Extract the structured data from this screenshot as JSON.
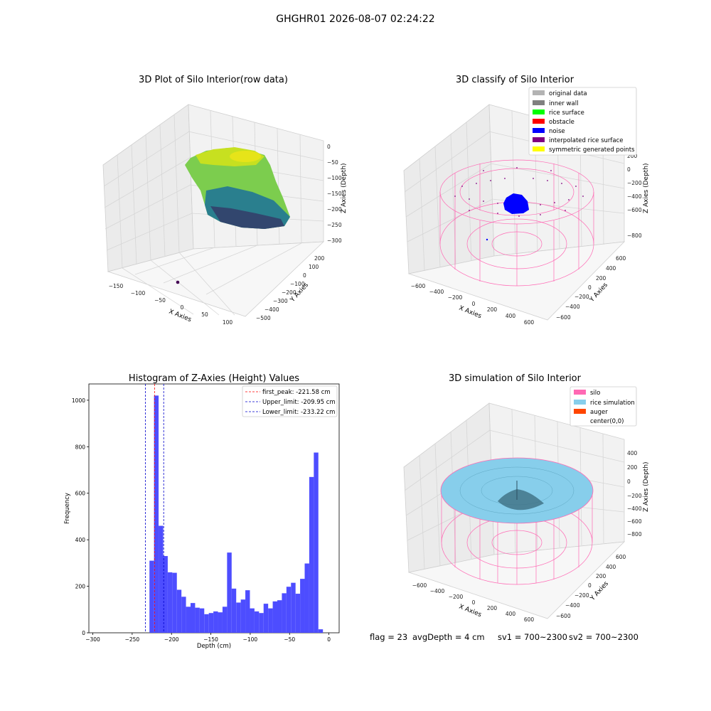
{
  "page_title": "GHGHR01 2026-08-07 02:24:22",
  "colors": {
    "original_data": "#b3b3b3",
    "inner_wall": "#808080",
    "rice_surface": "#00ff00",
    "obstacle": "#ff0000",
    "noise": "#0000ff",
    "interpolated_rice_surface": "#800080",
    "symmetric_generated_points": "#ffff00",
    "silo": "#ff69b4",
    "rice_simulation": "#87ceeb",
    "auger": "#ff4500",
    "hist_bar": "#4d4dff",
    "first_peak": "#ff0000",
    "limit": "#0000cc"
  },
  "panel1": {
    "title": "3D Plot of Silo Interior(row data)",
    "xlabel": "X Axies",
    "ylabel": "Y Axies",
    "zlabel": "Z Axies (Depth)",
    "xticks": [
      "−150",
      "−100",
      "−50",
      "0",
      "50",
      "100"
    ],
    "yticks": [
      "200",
      "100",
      "0",
      "−100",
      "−200",
      "−300",
      "−400",
      "−500"
    ],
    "zticks": [
      "0",
      "−50",
      "−100",
      "−150",
      "−200",
      "−250",
      "−300"
    ]
  },
  "panel2": {
    "title": "3D classify of Silo Interior",
    "xlabel": "X Axies",
    "ylabel": "Y Axies",
    "zlabel": "Z Axies (Depth)",
    "xticks": [
      "−600",
      "−400",
      "−200",
      "0",
      "200",
      "400",
      "600"
    ],
    "yticks": [
      "600",
      "400",
      "200",
      "0",
      "−200",
      "−400",
      "−600"
    ],
    "zticks": [
      "200",
      "0",
      "−200",
      "−400",
      "−600",
      "−800"
    ],
    "legend": [
      "original data",
      "inner wall",
      "rice surface",
      "obstacle",
      "noise",
      "interpolated rice surface",
      "symmetric generated points"
    ]
  },
  "panel4": {
    "title": "3D simulation of Silo Interior",
    "xlabel": "X Axies",
    "ylabel": "Y Axies",
    "zlabel": "Z Axies (Depth)",
    "xticks": [
      "−600",
      "−400",
      "−200",
      "0",
      "200",
      "400",
      "600"
    ],
    "yticks": [
      "600",
      "400",
      "200",
      "0",
      "−200",
      "−400",
      "−600"
    ],
    "zticks": [
      "400",
      "200",
      "0",
      "−200",
      "−400",
      "−600",
      "−800"
    ],
    "legend": [
      "silo",
      "rice simulation",
      "auger",
      "center(0,0)"
    ]
  },
  "status": {
    "flag": "flag = 23",
    "avg_depth": "avgDepth = 4 cm",
    "sv1": "sv1 = 700~2300",
    "sv2": "sv2 = 700~2300"
  },
  "chart_data": {
    "type": "bar",
    "title": "Histogram of Z-Axies (Height) Values",
    "xlabel": "Depth (cm)",
    "ylabel": "Frequency",
    "xlim": [
      -305,
      13
    ],
    "ylim": [
      0,
      1070
    ],
    "xticks": [
      -300,
      -250,
      -200,
      -150,
      -100,
      -50,
      0
    ],
    "yticks": [
      0,
      200,
      400,
      600,
      800,
      1000
    ],
    "bin_width": 5.8,
    "bin_starts": [
      -228,
      -222.2,
      -216.4,
      -210.6,
      -204.8,
      -199,
      -193.2,
      -187.4,
      -181.6,
      -175.8,
      -170,
      -164.2,
      -158.4,
      -152.6,
      -146.8,
      -141,
      -135.2,
      -129.4,
      -123.6,
      -117.8,
      -112,
      -106.2,
      -100.4,
      -94.6,
      -88.8,
      -83,
      -77.2,
      -71.4,
      -65.6,
      -59.8,
      -54,
      -48.2,
      -42.4,
      -36.6,
      -30.8,
      -25,
      -19.2,
      -13.4
    ],
    "values": [
      310,
      1020,
      460,
      330,
      260,
      258,
      185,
      155,
      112,
      128,
      108,
      105,
      80,
      85,
      92,
      88,
      112,
      345,
      190,
      130,
      143,
      183,
      105,
      92,
      85,
      125,
      105,
      135,
      140,
      170,
      198,
      215,
      168,
      232,
      298,
      670,
      775,
      15
    ],
    "lines": [
      {
        "name": "first_peak: -221.58 cm",
        "x": -221.58,
        "color": "#ff0000"
      },
      {
        "name": "Upper_limit: -209.95 cm",
        "x": -209.95,
        "color": "#0000cc"
      },
      {
        "name": "Lower_limit: -233.22 cm",
        "x": -233.22,
        "color": "#0000cc"
      }
    ],
    "legend_position": "upper right"
  }
}
